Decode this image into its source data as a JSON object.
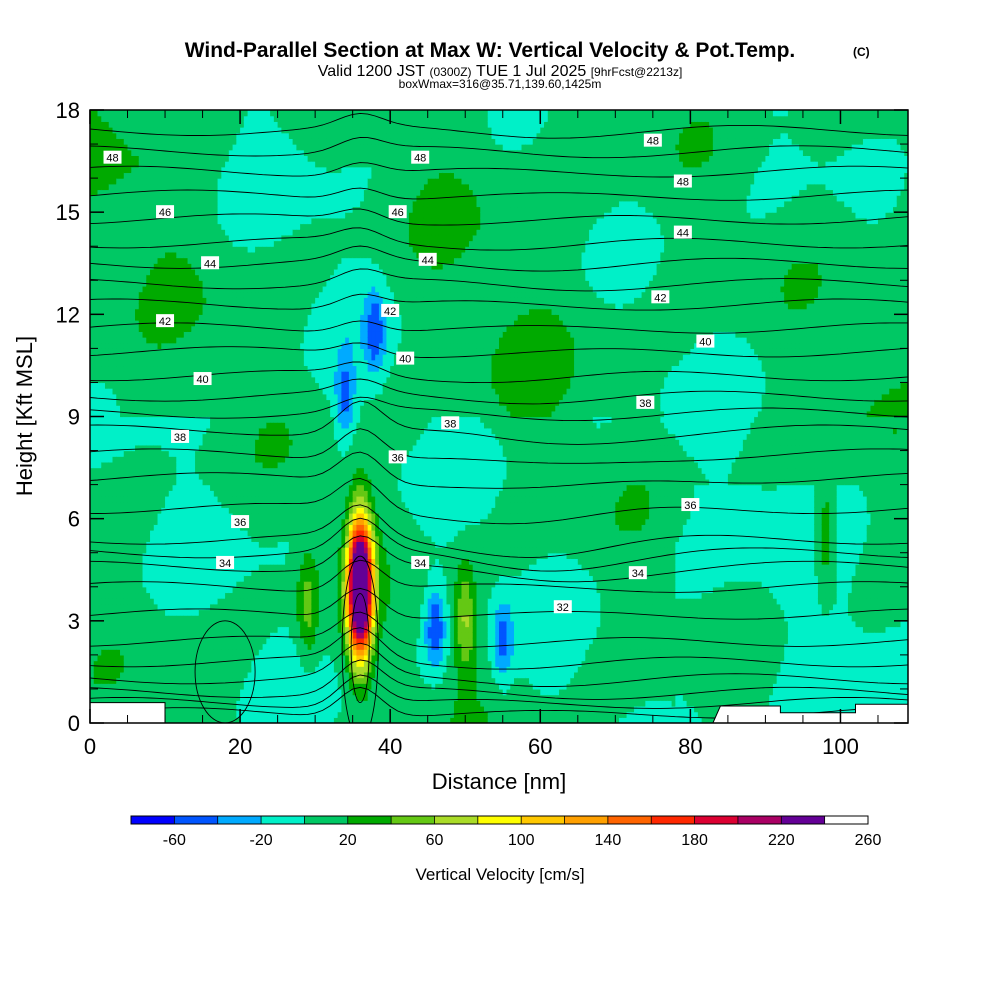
{
  "header": {
    "title": "Wind-Parallel Section at Max W: Vertical Velocity & Pot.Temp.",
    "copyright": "(C)",
    "valid_prefix": "Valid 1200 JST",
    "valid_utc": "(0300Z)",
    "valid_date": "TUE 1 Jul 2025",
    "forecast": "[9hrFcst@2213z]",
    "box_info": "boxWmax=316@35.71,139.60,1425m"
  },
  "colors": {
    "levels": [
      "#0000ff",
      "#0055ff",
      "#00aaff",
      "#00f0c8",
      "#00c864",
      "#00aa00",
      "#64c814",
      "#aadc28",
      "#ffff00",
      "#ffc800",
      "#ffa000",
      "#ff6400",
      "#ff2800",
      "#dc0032",
      "#aa0064",
      "#640096"
    ],
    "contour": "#000000",
    "terrain": "#ffffff"
  },
  "chart_data": {
    "type": "heatmap",
    "xlabel": "Distance [nm]",
    "ylabel": "Height [Kft MSL]",
    "xlim": [
      0,
      109
    ],
    "ylim": [
      0,
      18
    ],
    "xticks": [
      "0",
      "20",
      "40",
      "60",
      "80",
      "100"
    ],
    "yticks": [
      "0",
      "3",
      "6",
      "9",
      "12",
      "15",
      "18"
    ],
    "colorbar": {
      "title": "Vertical Velocity [cm/s]",
      "tick_labels": [
        "-60",
        "-20",
        "20",
        "60",
        "100",
        "140",
        "180",
        "220",
        "260"
      ],
      "levels": [
        -80,
        -60,
        -40,
        -20,
        0,
        20,
        40,
        60,
        80,
        100,
        120,
        140,
        160,
        180,
        200,
        220,
        240,
        260
      ]
    },
    "updrafts": [
      {
        "x": 36,
        "z": 4.0,
        "w": 316
      },
      {
        "x": 29,
        "z": 3.5,
        "w": 45
      },
      {
        "x": 50,
        "z": 3.0,
        "w": 60
      },
      {
        "x": 98,
        "z": 5.5,
        "w": 45
      }
    ],
    "downdrafts": [
      {
        "x": 46,
        "z": 2.8,
        "w": -55
      },
      {
        "x": 55,
        "z": 2.4,
        "w": -45
      },
      {
        "x": 34,
        "z": 9.5,
        "w": -45
      },
      {
        "x": 38,
        "z": 11.5,
        "w": -45
      }
    ],
    "theta_contour_labels": [
      {
        "text": "48",
        "x": 3,
        "z": 16.6
      },
      {
        "text": "48",
        "x": 44,
        "z": 16.6
      },
      {
        "text": "48",
        "x": 75,
        "z": 17.1
      },
      {
        "text": "48",
        "x": 79,
        "z": 15.9
      },
      {
        "text": "46",
        "x": 10,
        "z": 15.0
      },
      {
        "text": "46",
        "x": 41,
        "z": 15.0
      },
      {
        "text": "44",
        "x": 16,
        "z": 13.5
      },
      {
        "text": "44",
        "x": 45,
        "z": 13.6
      },
      {
        "text": "44",
        "x": 79,
        "z": 14.4
      },
      {
        "text": "42",
        "x": 10,
        "z": 11.8
      },
      {
        "text": "42",
        "x": 40,
        "z": 12.1
      },
      {
        "text": "42",
        "x": 76,
        "z": 12.5
      },
      {
        "text": "40",
        "x": 15,
        "z": 10.1
      },
      {
        "text": "40",
        "x": 42,
        "z": 10.7
      },
      {
        "text": "40",
        "x": 82,
        "z": 11.2
      },
      {
        "text": "38",
        "x": 12,
        "z": 8.4
      },
      {
        "text": "38",
        "x": 48,
        "z": 8.8
      },
      {
        "text": "38",
        "x": 74,
        "z": 9.4
      },
      {
        "text": "36",
        "x": 41,
        "z": 7.8
      },
      {
        "text": "36",
        "x": 20,
        "z": 5.9
      },
      {
        "text": "36",
        "x": 80,
        "z": 6.4
      },
      {
        "text": "34",
        "x": 18,
        "z": 4.7
      },
      {
        "text": "34",
        "x": 44,
        "z": 4.7
      },
      {
        "text": "34",
        "x": 73,
        "z": 4.4
      },
      {
        "text": "32",
        "x": 63,
        "z": 3.4
      }
    ],
    "terrain_profile": [
      [
        0,
        0.6
      ],
      [
        10,
        0.6
      ],
      [
        10,
        0
      ],
      [
        83,
        0
      ],
      [
        84,
        0.5
      ],
      [
        92,
        0.5
      ],
      [
        92,
        0.3
      ],
      [
        102,
        0.3
      ],
      [
        102,
        0.55
      ],
      [
        109,
        0.55
      ]
    ]
  }
}
